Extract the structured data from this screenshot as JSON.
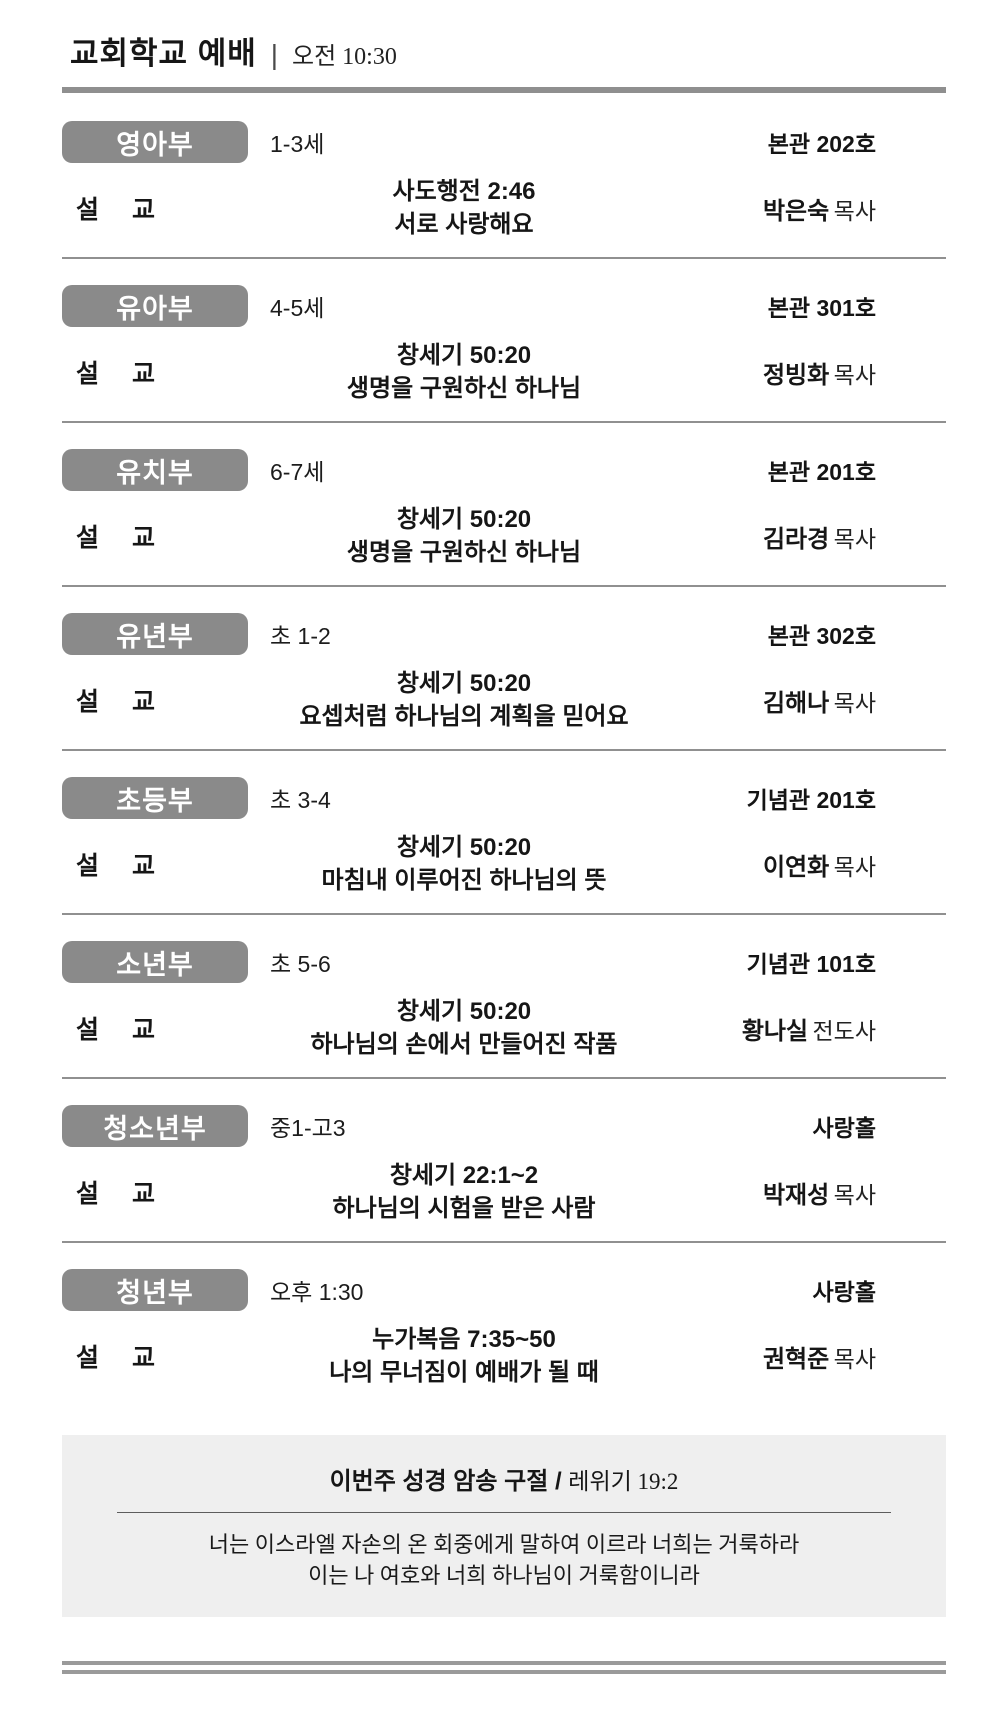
{
  "header": {
    "title": "교회학교 예배",
    "separator": "|",
    "time": "오전 10:30"
  },
  "labels": {
    "sermon": "설 교"
  },
  "sections": [
    {
      "name": "영아부",
      "age": "1-3세",
      "location": "본관 202호",
      "scripture": "사도행전 2:46",
      "sermon_title": "서로 사랑해요",
      "preacher": "박은숙",
      "preacher_title": "목사"
    },
    {
      "name": "유아부",
      "age": "4-5세",
      "location": "본관 301호",
      "scripture": "창세기 50:20",
      "sermon_title": "생명을 구원하신 하나님",
      "preacher": "정빙화",
      "preacher_title": "목사"
    },
    {
      "name": "유치부",
      "age": "6-7세",
      "location": "본관 201호",
      "scripture": "창세기 50:20",
      "sermon_title": "생명을 구원하신 하나님",
      "preacher": "김라경",
      "preacher_title": "목사"
    },
    {
      "name": "유년부",
      "age": "초 1-2",
      "location": "본관 302호",
      "scripture": "창세기 50:20",
      "sermon_title": "요셉처럼 하나님의 계획을 믿어요",
      "preacher": "김해나",
      "preacher_title": "목사"
    },
    {
      "name": "초등부",
      "age": "초 3-4",
      "location": "기념관 201호",
      "scripture": "창세기 50:20",
      "sermon_title": "마침내 이루어진 하나님의 뜻",
      "preacher": "이연화",
      "preacher_title": "목사"
    },
    {
      "name": "소년부",
      "age": "초 5-6",
      "location": "기념관 101호",
      "scripture": "창세기 50:20",
      "sermon_title": "하나님의 손에서 만들어진 작품",
      "preacher": "황나실",
      "preacher_title": "전도사"
    },
    {
      "name": "청소년부",
      "age": "중1-고3",
      "location": "사랑홀",
      "scripture": "창세기 22:1~2",
      "sermon_title": "하나님의 시험을 받은 사람",
      "preacher": "박재성",
      "preacher_title": "목사"
    },
    {
      "name": "청년부",
      "age": "오후 1:30",
      "location": "사랑홀",
      "scripture": "누가복음 7:35~50",
      "sermon_title": "나의 무너짐이 예배가 될 때",
      "preacher": "권혁준",
      "preacher_title": "목사"
    }
  ],
  "memory_verse": {
    "label": "이번주 성경 암송 구절 /",
    "reference": "레위기 19:2",
    "lines": [
      "너는 이스라엘 자손의 온 회중에게 말하여 이르라 너희는 거룩하라",
      "이는 나 여호와 너희 하나님이 거룩함이니라"
    ]
  },
  "colors": {
    "badge_gray": "#8a8a8a",
    "rule_gray": "#8f8f8f",
    "verse_box_bg": "#efefef"
  }
}
